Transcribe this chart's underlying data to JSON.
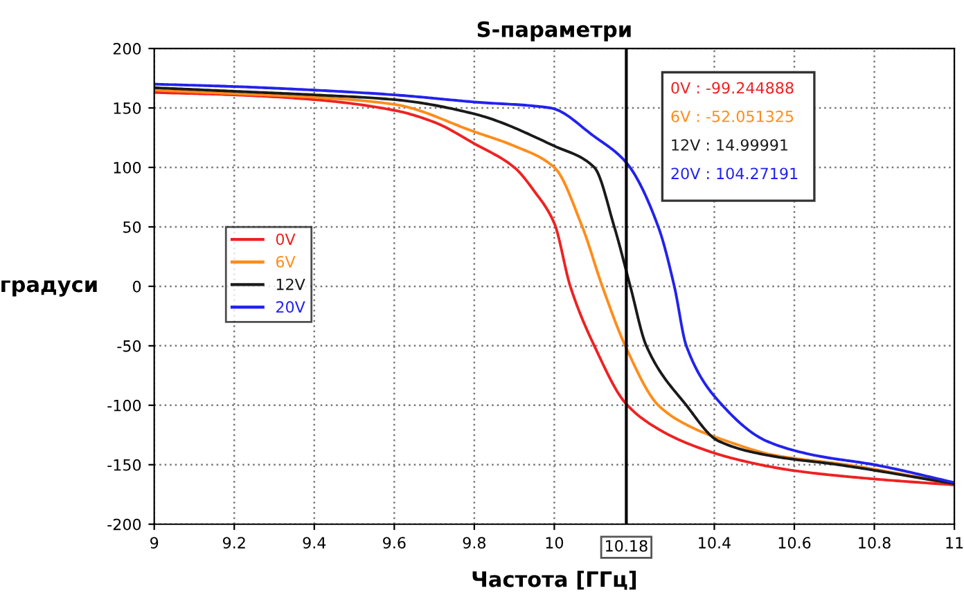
{
  "chart_data": {
    "type": "line",
    "title": "S-параметри",
    "xlabel": "Частота [ГГц]",
    "ylabel": "градуси",
    "xlim": [
      9,
      11
    ],
    "xticks": [
      9,
      9.2,
      9.4,
      9.6,
      9.8,
      10,
      10.4,
      10.6,
      10.8,
      11
    ],
    "ylim": [
      -200,
      200
    ],
    "yticks": [
      -200,
      -150,
      -100,
      -50,
      0,
      50,
      100,
      150,
      200
    ],
    "grid": true,
    "legend": "center left",
    "marker": "none",
    "line_style": "solid",
    "series": [
      {
        "name": "0V",
        "color": "#ee2222",
        "x": [
          9,
          9.2,
          9.4,
          9.6,
          9.7,
          9.8,
          9.9,
          9.95,
          10,
          10.04,
          10.1,
          10.18,
          10.26,
          10.34,
          10.45,
          10.6,
          10.8,
          11
        ],
        "values": [
          163,
          161,
          157,
          148,
          138,
          120,
          100,
          80,
          53,
          0,
          -50,
          -99,
          -120,
          -133,
          -145,
          -155,
          -162,
          -167
        ]
      },
      {
        "name": "6V",
        "color": "#ff8c1a",
        "x": [
          9,
          9.2,
          9.4,
          9.6,
          9.8,
          9.9,
          10,
          10.07,
          10.12,
          10.18,
          10.26,
          10.34,
          10.43,
          10.55,
          10.73,
          11
        ],
        "values": [
          165,
          162,
          159,
          153,
          130,
          118,
          100,
          50,
          0,
          -52,
          -100,
          -118,
          -130,
          -142,
          -150,
          -166
        ]
      },
      {
        "name": "12V",
        "color": "#1a1a1a",
        "x": [
          9,
          9.2,
          9.4,
          9.6,
          9.8,
          10,
          10.1,
          10.15,
          10.19,
          10.23,
          10.33,
          10.41,
          10.55,
          10.71,
          11
        ],
        "values": [
          167,
          164,
          161,
          157,
          145,
          118,
          100,
          50,
          0,
          -50,
          -100,
          -130,
          -143,
          -150,
          -166
        ]
      },
      {
        "name": "20V",
        "color": "#2222ee",
        "x": [
          9,
          9.2,
          9.4,
          9.6,
          9.8,
          9.99,
          10.1,
          10.18,
          10.26,
          10.3,
          10.33,
          10.42,
          10.53,
          10.65,
          10.8,
          11
        ],
        "values": [
          170,
          168,
          165,
          161,
          155,
          150,
          126,
          104,
          50,
          0,
          -50,
          -100,
          -130,
          -142,
          -150,
          -165
        ]
      }
    ],
    "ref_lines": [
      {
        "axis": "x",
        "value": 10.18,
        "label": "10.18",
        "color": "#000000"
      }
    ],
    "annotations": [
      "0V : -99.244888",
      "6V : -52.051325",
      "12V : 14.99991",
      "20V : 104.27191"
    ]
  }
}
